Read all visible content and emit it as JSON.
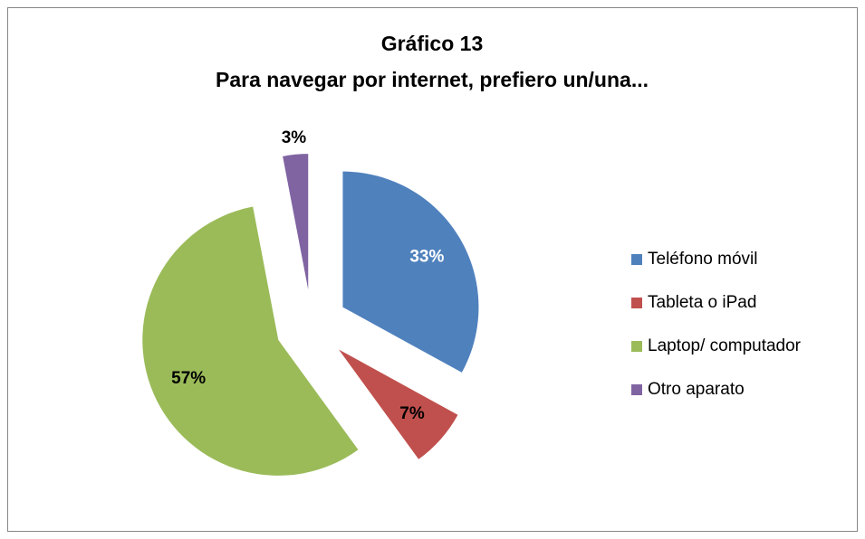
{
  "chart_data": {
    "type": "pie",
    "title": "Gráfico 13",
    "subtitle": "Para navegar por internet, prefiero un/una...",
    "categories": [
      "Teléfono móvil",
      "Tableta o iPad",
      "Laptop/ computador",
      "Otro aparato"
    ],
    "values": [
      33,
      7,
      57,
      3
    ],
    "value_labels": [
      "33%",
      "7%",
      "57%",
      "3%"
    ],
    "colors": [
      "#4f81bd",
      "#c0504d",
      "#9bbb59",
      "#8064a2"
    ],
    "label_colors": [
      "#ffffff",
      "#000000",
      "#000000",
      "#000000"
    ],
    "legend": "right"
  }
}
